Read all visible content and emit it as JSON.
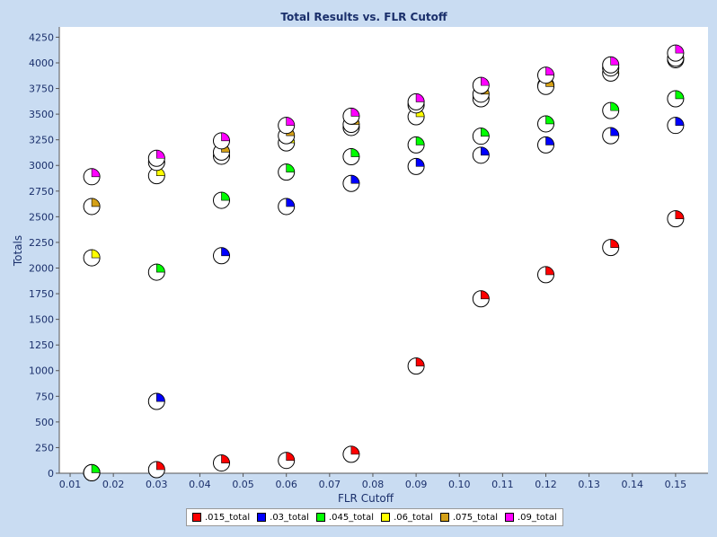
{
  "chart_data": {
    "type": "scatter",
    "title": "Total Results vs. FLR Cutoff",
    "xlabel": "FLR Cutoff",
    "ylabel": "Totals",
    "xlim": [
      0.0075,
      0.1575
    ],
    "ylim": [
      0,
      4350
    ],
    "xticks": [
      "0.01",
      "0.02",
      "0.03",
      "0.04",
      "0.05",
      "0.06",
      "0.07",
      "0.08",
      "0.09",
      "0.10",
      "0.11",
      "0.12",
      "0.13",
      "0.14",
      "0.15"
    ],
    "yticks": [
      "0",
      "250",
      "500",
      "750",
      "1000",
      "1250",
      "1500",
      "1750",
      "2000",
      "2250",
      "2500",
      "2750",
      "3000",
      "3250",
      "3500",
      "3750",
      "4000",
      "4250"
    ],
    "grid": false,
    "legend_position": "bottom",
    "x": [
      0.015,
      0.03,
      0.045,
      0.06,
      0.075,
      0.09,
      0.105,
      0.12,
      0.135,
      0.15
    ],
    "series": [
      {
        "name": ".015_total",
        "color": "#ff0000",
        "values": [
          5,
          35,
          100,
          125,
          185,
          1045,
          1700,
          1935,
          2200,
          2480
        ]
      },
      {
        "name": ".03_total",
        "color": "#0000ff",
        "values": [
          5,
          700,
          2120,
          2600,
          2825,
          2990,
          3100,
          3200,
          3290,
          3390
        ]
      },
      {
        "name": ".045_total",
        "color": "#00ff00",
        "values": [
          5,
          1960,
          2660,
          2935,
          3085,
          3200,
          3285,
          3405,
          3535,
          3650
        ]
      },
      {
        "name": ".06_total",
        "color": "#ffff00",
        "values": [
          2100,
          2900,
          3090,
          3220,
          3370,
          3475,
          3650,
          3780,
          3900,
          4030
        ]
      },
      {
        "name": ".075_total",
        "color": "#d4a017",
        "values": [
          2600,
          3030,
          3130,
          3290,
          3400,
          3590,
          3695,
          3770,
          3950,
          4045
        ]
      },
      {
        "name": ".09_total",
        "color": "#ff00ff",
        "values": [
          2890,
          3070,
          3240,
          3390,
          3480,
          3620,
          3780,
          3880,
          3980,
          4095
        ]
      }
    ]
  }
}
